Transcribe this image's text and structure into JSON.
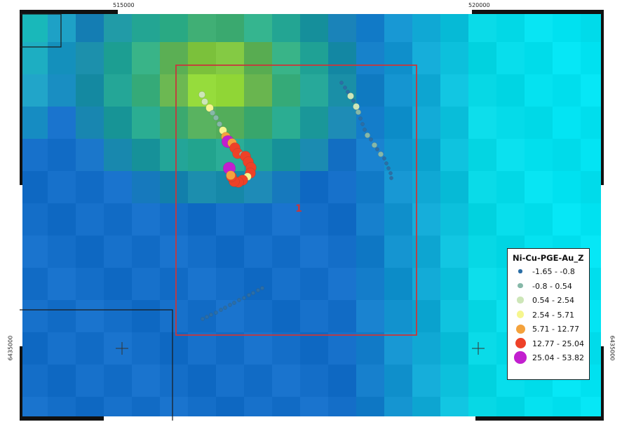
{
  "coordinates": {
    "top_left": "515000",
    "top_right": "520000",
    "left": "6435000",
    "right": "6435000"
  },
  "zone_label": "1",
  "legend": {
    "title": "Ni-Cu-PGE-Au_Z",
    "classes": [
      {
        "label": "-1.65 - -0.8",
        "color": "#2b6ea6",
        "size_class": 1
      },
      {
        "label": "-0.8 - 0.54",
        "color": "#86b8a8",
        "size_class": 2
      },
      {
        "label": "0.54 - 2.54",
        "color": "#cde6b8",
        "size_class": 3
      },
      {
        "label": "2.54 - 5.71",
        "color": "#f6f68e",
        "size_class": 4
      },
      {
        "label": "5.71 - 12.77",
        "color": "#f4a23c",
        "size_class": 5
      },
      {
        "label": "12.77 - 25.04",
        "color": "#ee4128",
        "size_class": 6
      },
      {
        "label": "25.04 - 53.82",
        "color": "#c21fcf",
        "size_class": 7
      }
    ]
  },
  "colors": {
    "boundary": "#c8373b",
    "label": "#c8373b",
    "outline": "#1a1a1a"
  }
}
